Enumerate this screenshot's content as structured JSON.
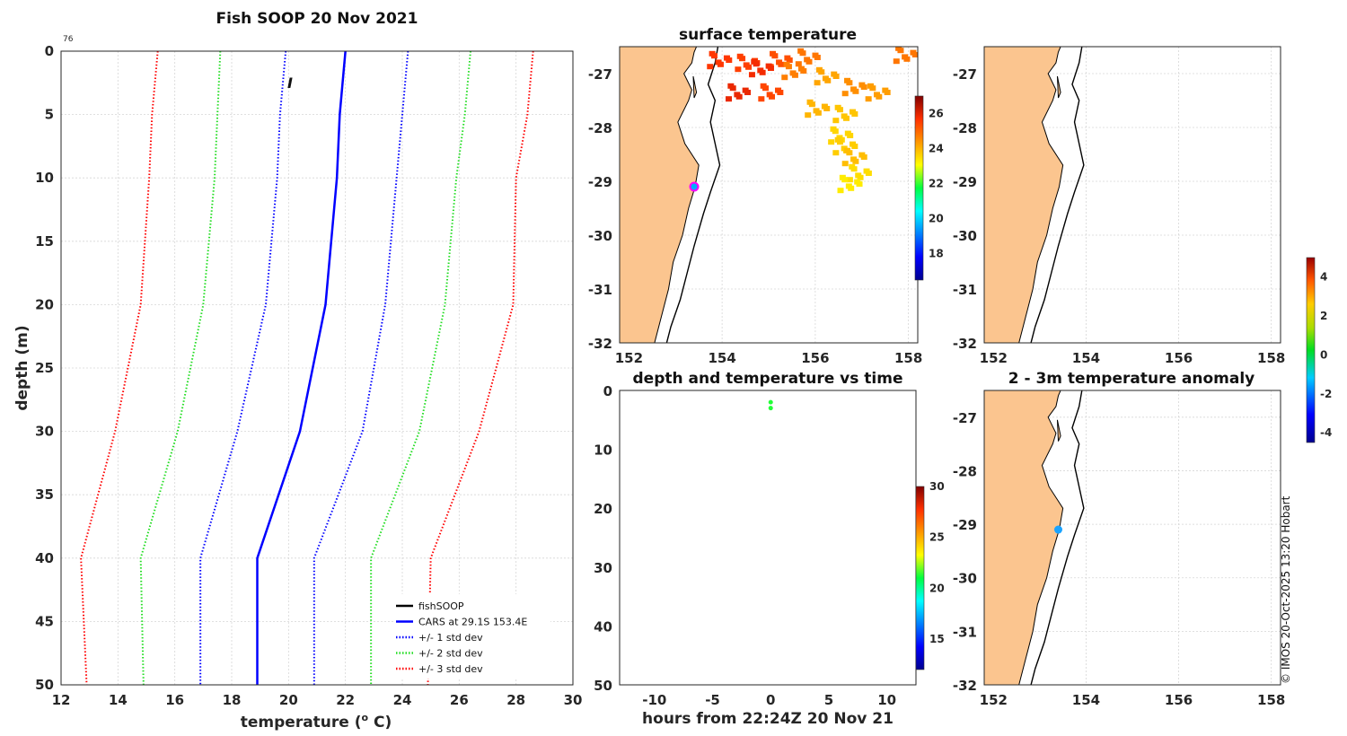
{
  "chart_data": [
    {
      "id": "profile",
      "type": "line",
      "title": "Fish SOOP 20 Nov 2021",
      "corner_label": "76",
      "xlabel": "temperature (",
      "xlabel_sup": "o",
      "xlabel_end": " C)",
      "ylabel": "depth (m)",
      "xlim": [
        12,
        30
      ],
      "ylim": [
        0,
        50
      ],
      "xticks": [
        12,
        14,
        16,
        18,
        20,
        22,
        24,
        26,
        28,
        30
      ],
      "yticks": [
        0,
        5,
        10,
        15,
        20,
        25,
        30,
        35,
        40,
        45,
        50
      ],
      "depth": [
        0,
        5,
        10,
        20,
        30,
        40,
        50
      ],
      "series": [
        {
          "name": "CARS at 29.1S 153.4E",
          "color": "#0000ff",
          "style": "solid",
          "values": [
            22.0,
            21.8,
            21.7,
            21.3,
            20.4,
            18.9,
            18.9
          ]
        },
        {
          "name": "+1 std dev",
          "color": "#0000ff",
          "style": "dotted",
          "values": [
            24.2,
            24.0,
            23.8,
            23.4,
            22.6,
            20.9,
            20.9
          ]
        },
        {
          "name": "-1 std dev",
          "color": "#0000ff",
          "style": "dotted",
          "values": [
            19.9,
            19.7,
            19.6,
            19.2,
            18.2,
            16.9,
            16.9
          ]
        },
        {
          "name": "+2 std dev",
          "color": "#22dd22",
          "style": "dotted",
          "values": [
            26.4,
            26.2,
            25.9,
            25.5,
            24.6,
            22.9,
            22.9
          ]
        },
        {
          "name": "-2 std dev",
          "color": "#22dd22",
          "style": "dotted",
          "values": [
            17.6,
            17.5,
            17.4,
            17.0,
            16.1,
            14.8,
            14.9
          ]
        },
        {
          "name": "+3 std dev",
          "color": "#ff0000",
          "style": "dotted",
          "values": [
            28.6,
            28.4,
            28.0,
            27.9,
            26.7,
            25.0,
            24.9
          ]
        },
        {
          "name": "-3 std dev",
          "color": "#ff0000",
          "style": "dotted",
          "values": [
            15.4,
            15.2,
            15.1,
            14.8,
            13.9,
            12.7,
            12.9
          ]
        }
      ],
      "observation_marker": {
        "temperature": 20.0,
        "depth": 2.5,
        "text": "I"
      },
      "legend": [
        {
          "label": "fishSOOP",
          "color": "#000000",
          "style": "solid"
        },
        {
          "label": "CARS at 29.1S 153.4E",
          "color": "#0000ff",
          "style": "solid"
        },
        {
          "label": "+/- 1 std dev",
          "color": "#0000ff",
          "style": "dotted"
        },
        {
          "label": "+/- 2 std dev",
          "color": "#22dd22",
          "style": "dotted"
        },
        {
          "label": "+/- 3 std dev",
          "color": "#ff0000",
          "style": "dotted"
        }
      ],
      "legend_position": "bottom-right"
    },
    {
      "id": "sst_map",
      "type": "heatmap",
      "title": "surface temperature",
      "xlim": [
        151.8,
        158.2
      ],
      "ylim": [
        -32,
        -26.5
      ],
      "xticks": [
        152,
        154,
        156,
        158
      ],
      "yticks": [
        -27,
        -28,
        -29,
        -30,
        -31,
        -32
      ],
      "colorbar_ticks": [
        18,
        20,
        22,
        24,
        26
      ],
      "colorbar_range": [
        16.5,
        27
      ],
      "station": {
        "lon": 153.4,
        "lat": -29.1
      },
      "patches": [
        {
          "lon": 154.5,
          "lat": -26.75,
          "temp": 25.5
        },
        {
          "lon": 155.2,
          "lat": -26.7,
          "temp": 25.3
        },
        {
          "lon": 155.8,
          "lat": -26.65,
          "temp": 24.8
        },
        {
          "lon": 154.8,
          "lat": -26.85,
          "temp": 25.8
        },
        {
          "lon": 155.5,
          "lat": -26.9,
          "temp": 24.7
        },
        {
          "lon": 153.9,
          "lat": -26.7,
          "temp": 25.6
        },
        {
          "lon": 155.0,
          "lat": -27.3,
          "temp": 25.4
        },
        {
          "lon": 154.3,
          "lat": -27.3,
          "temp": 25.9
        },
        {
          "lon": 156.2,
          "lat": -27.0,
          "temp": 24.2
        },
        {
          "lon": 156.8,
          "lat": -27.2,
          "temp": 24.5
        },
        {
          "lon": 157.3,
          "lat": -27.3,
          "temp": 24.3
        },
        {
          "lon": 156.0,
          "lat": -27.6,
          "temp": 24.0
        },
        {
          "lon": 157.9,
          "lat": -26.6,
          "temp": 24.8
        },
        {
          "lon": 156.6,
          "lat": -27.7,
          "temp": 23.8
        },
        {
          "lon": 156.5,
          "lat": -28.1,
          "temp": 23.6
        },
        {
          "lon": 156.6,
          "lat": -28.3,
          "temp": 23.7
        },
        {
          "lon": 156.8,
          "lat": -28.5,
          "temp": 23.9
        },
        {
          "lon": 156.9,
          "lat": -28.8,
          "temp": 23.5
        },
        {
          "lon": 156.7,
          "lat": -29.0,
          "temp": 23.3
        }
      ]
    },
    {
      "id": "time_series",
      "type": "scatter",
      "title": "depth and temperature vs time",
      "xlabel": "hours from 22:24Z 20 Nov 21",
      "xlim": [
        -13,
        12.5
      ],
      "ylim": [
        0,
        50
      ],
      "xticks": [
        -10,
        -5,
        0,
        5,
        10
      ],
      "yticks": [
        0,
        10,
        20,
        30,
        40,
        50
      ],
      "colorbar_ticks": [
        15,
        20,
        25,
        30
      ],
      "colorbar_range": [
        12,
        30
      ],
      "points": [
        {
          "hours": 0,
          "depth": 2,
          "temp": 21.3
        },
        {
          "hours": 0,
          "depth": 3,
          "temp": 21.3
        }
      ]
    },
    {
      "id": "top_right_map",
      "type": "heatmap",
      "title": "",
      "xlim": [
        151.8,
        158.2
      ],
      "ylim": [
        -32,
        -26.5
      ],
      "xticks": [
        152,
        154,
        156,
        158
      ],
      "yticks": [
        -27,
        -28,
        -29,
        -30,
        -31,
        -32
      ]
    },
    {
      "id": "anomaly_map",
      "type": "scatter",
      "title": "2 - 3m temperature anomaly",
      "xlim": [
        151.8,
        158.2
      ],
      "ylim": [
        -32,
        -26.5
      ],
      "xticks": [
        152,
        154,
        156,
        158
      ],
      "yticks": [
        -27,
        -28,
        -29,
        -30,
        -31,
        -32
      ],
      "colorbar_ticks": [
        4,
        2,
        0,
        -2,
        -4
      ],
      "colorbar_range": [
        -4.5,
        5
      ],
      "points": [
        {
          "lon": 153.4,
          "lat": -29.1,
          "anomaly": -1.3
        }
      ]
    }
  ],
  "credit": "© IMOS 20-Oct-2025 13:20 Hobart"
}
